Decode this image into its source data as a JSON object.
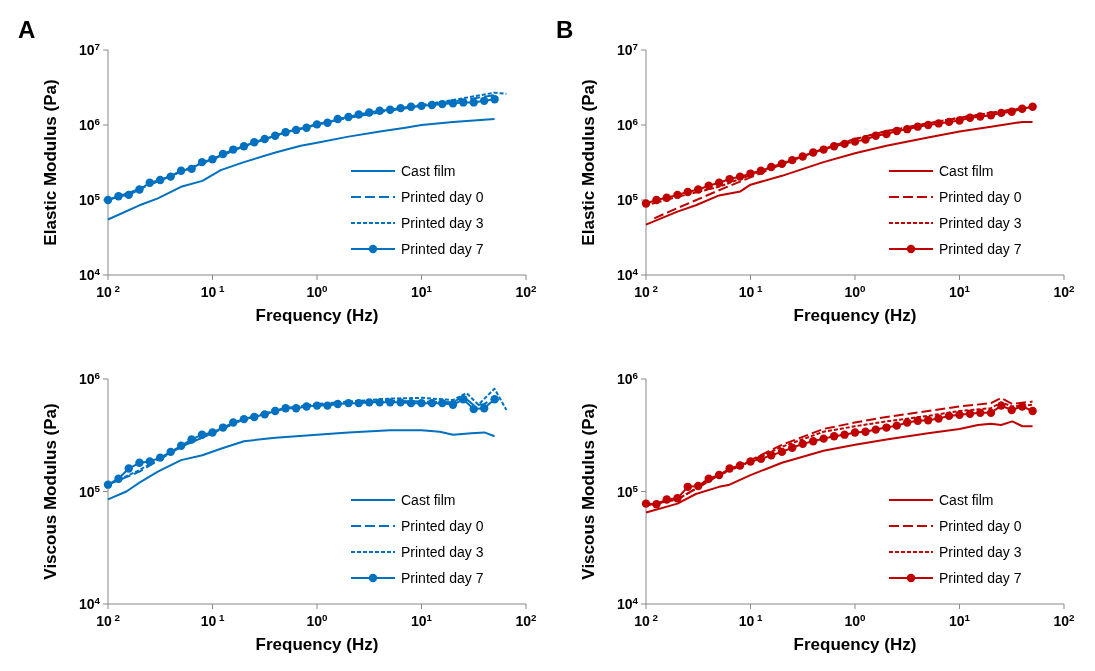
{
  "chart_data": [
    {
      "type": "line",
      "title": "A",
      "xlabel": "Frequency (Hz)",
      "ylabel": "Elastic Modulus (Pa)",
      "log": "xy",
      "legend": "bottom right",
      "grid": false,
      "xlim": [
        0.01,
        100
      ],
      "xticks": [
        {
          "value": 0.01,
          "label": "10$^{ 2}$"
        },
        {
          "value": 0.1,
          "label": "10$^{ 1}$"
        },
        {
          "value": 1,
          "label": "10$^{0}$"
        },
        {
          "value": 10,
          "label": "10$^{1}$"
        },
        {
          "value": 100,
          "label": "10$^{2}$"
        }
      ],
      "ylim": [
        10000,
        10000000
      ],
      "yticks": [
        {
          "value": 10000,
          "label": "10$^{4}$"
        },
        {
          "value": 100000,
          "label": "10$^{5}$"
        },
        {
          "value": 1000000,
          "label": "10$^{6}$"
        },
        {
          "value": 10000000,
          "label": "10$^{7}$"
        }
      ],
      "series": [
        {
          "name": "Cast film",
          "color": "#0070c0",
          "line_style": "solid",
          "marker": "none",
          "x": [
            0.01,
            0.02,
            0.03,
            0.05,
            0.08,
            0.12,
            0.2,
            0.4,
            0.7,
            1,
            2,
            4,
            7,
            10,
            20,
            50
          ],
          "values": [
            55000,
            85000,
            105000,
            150000,
            180000,
            250000,
            320000,
            430000,
            530000,
            580000,
            700000,
            820000,
            920000,
            1000000,
            1100000,
            1200000
          ]
        },
        {
          "name": "Printed day 0",
          "color": "#0070c0",
          "line_style": "longdash",
          "marker": "none",
          "x": [
            0.01,
            0.02,
            0.05,
            0.1,
            0.2,
            0.5,
            1,
            2,
            5,
            10,
            20,
            50
          ],
          "values": [
            100000,
            140000,
            240000,
            350000,
            520000,
            800000,
            1020000,
            1250000,
            1550000,
            1800000,
            2050000,
            2500000
          ]
        },
        {
          "name": "Printed day 3",
          "color": "#0070c0",
          "line_style": "dashed",
          "marker": "none",
          "x": [
            0.01,
            0.02,
            0.05,
            0.1,
            0.2,
            0.5,
            1,
            2,
            5,
            10,
            20,
            50,
            65
          ],
          "values": [
            100000,
            140000,
            240000,
            350000,
            520000,
            800000,
            1020000,
            1250000,
            1580000,
            1850000,
            2150000,
            2700000,
            2600000
          ]
        },
        {
          "name": "Printed day 7",
          "color": "#0070c0",
          "line_style": "solid",
          "marker": "circle",
          "x": [
            0.01,
            0.0126,
            0.0158,
            0.02,
            0.0251,
            0.0316,
            0.0398,
            0.0501,
            0.0631,
            0.0794,
            0.1,
            0.126,
            0.158,
            0.2,
            0.251,
            0.316,
            0.398,
            0.501,
            0.631,
            0.794,
            1,
            1.26,
            1.58,
            2,
            2.51,
            3.16,
            3.98,
            5.01,
            6.31,
            7.94,
            10,
            12.6,
            15.8,
            20,
            25.1,
            31.6,
            39.8,
            50.1
          ],
          "values": [
            100000,
            112000,
            117000,
            138000,
            170000,
            185000,
            205000,
            245000,
            260000,
            320000,
            350000,
            410000,
            470000,
            520000,
            590000,
            650000,
            720000,
            800000,
            860000,
            920000,
            1020000,
            1070000,
            1200000,
            1280000,
            1380000,
            1470000,
            1550000,
            1600000,
            1680000,
            1750000,
            1800000,
            1850000,
            1900000,
            1950000,
            2000000,
            2000000,
            2100000,
            2200000
          ]
        }
      ]
    },
    {
      "type": "line",
      "title": "B",
      "xlabel": "Frequency (Hz)",
      "ylabel": "Elastic Modulus (Pa)",
      "log": "xy",
      "legend": "bottom right",
      "grid": false,
      "xlim": [
        0.01,
        100
      ],
      "xticks": [
        {
          "value": 0.01,
          "label": "10$^{ 2}$"
        },
        {
          "value": 0.1,
          "label": "10$^{ 1}$"
        },
        {
          "value": 1,
          "label": "10$^{0}$"
        },
        {
          "value": 10,
          "label": "10$^{1}$"
        },
        {
          "value": 100,
          "label": "10$^{2}$"
        }
      ],
      "ylim": [
        10000,
        10000000
      ],
      "yticks": [
        {
          "value": 10000,
          "label": "10$^{4}$"
        },
        {
          "value": 100000,
          "label": "10$^{5}$"
        },
        {
          "value": 1000000,
          "label": "10$^{6}$"
        },
        {
          "value": 10000000,
          "label": "10$^{7}$"
        }
      ],
      "series": [
        {
          "name": "Cast film",
          "color": "#c00000",
          "line_style": "solid",
          "marker": "none",
          "x": [
            0.01,
            0.02,
            0.03,
            0.05,
            0.08,
            0.1,
            0.2,
            0.5,
            1,
            2,
            5,
            10,
            20,
            40,
            50
          ],
          "values": [
            47000,
            70000,
            85000,
            115000,
            130000,
            160000,
            210000,
            320000,
            420000,
            530000,
            680000,
            820000,
            950000,
            1100000,
            1100000
          ]
        },
        {
          "name": "Printed day 0",
          "color": "#c00000",
          "line_style": "longdash",
          "marker": "none",
          "x": [
            0.012,
            0.02,
            0.05,
            0.1,
            0.2,
            0.5,
            1,
            2,
            5,
            10,
            20,
            50
          ],
          "values": [
            57000,
            78000,
            135000,
            200000,
            300000,
            480000,
            650000,
            830000,
            1050000,
            1250000,
            1450000,
            1750000
          ]
        },
        {
          "name": "Printed day 3",
          "color": "#c00000",
          "line_style": "dashed",
          "marker": "none",
          "x": [
            0.01,
            0.02,
            0.05,
            0.1,
            0.2,
            0.5,
            1,
            2,
            5,
            10,
            20,
            50
          ],
          "values": [
            85000,
            110000,
            150000,
            215000,
            310000,
            480000,
            650000,
            830000,
            1050000,
            1250000,
            1450000,
            1750000
          ]
        },
        {
          "name": "Printed day 7",
          "color": "#c00000",
          "line_style": "solid",
          "marker": "circle",
          "x": [
            0.01,
            0.0126,
            0.0158,
            0.02,
            0.0251,
            0.0316,
            0.0398,
            0.0501,
            0.0631,
            0.0794,
            0.1,
            0.126,
            0.158,
            0.2,
            0.251,
            0.316,
            0.398,
            0.501,
            0.631,
            0.794,
            1,
            1.26,
            1.58,
            2,
            2.51,
            3.16,
            3.98,
            5.01,
            6.31,
            7.94,
            10,
            12.6,
            15.8,
            20,
            25.1,
            31.6,
            39.8,
            50.1
          ],
          "values": [
            90000,
            100000,
            107000,
            117000,
            128000,
            138000,
            155000,
            170000,
            190000,
            205000,
            225000,
            245000,
            275000,
            305000,
            340000,
            380000,
            430000,
            470000,
            520000,
            560000,
            600000,
            640000,
            720000,
            760000,
            830000,
            880000,
            950000,
            1000000,
            1050000,
            1100000,
            1150000,
            1250000,
            1300000,
            1350000,
            1450000,
            1500000,
            1650000,
            1750000
          ]
        }
      ]
    },
    {
      "type": "line",
      "xlabel": "Frequency (Hz)",
      "ylabel": "Viscous Modulus (Pa)",
      "log": "xy",
      "legend": "bottom right",
      "grid": false,
      "xlim": [
        0.01,
        100
      ],
      "xticks": [
        {
          "value": 0.01,
          "label": "10$^{ 2}$"
        },
        {
          "value": 0.1,
          "label": "10$^{ 1}$"
        },
        {
          "value": 1,
          "label": "10$^{0}$"
        },
        {
          "value": 10,
          "label": "10$^{1}$"
        },
        {
          "value": 100,
          "label": "10$^{2}$"
        }
      ],
      "ylim": [
        10000,
        1000000
      ],
      "yticks": [
        {
          "value": 10000,
          "label": "10$^{4}$"
        },
        {
          "value": 100000,
          "label": "10$^{5}$"
        },
        {
          "value": 1000000,
          "label": "10$^{6}$"
        }
      ],
      "series": [
        {
          "name": "Cast film",
          "color": "#0070c0",
          "line_style": "solid",
          "marker": "none",
          "x": [
            0.01,
            0.015,
            0.02,
            0.03,
            0.05,
            0.08,
            0.12,
            0.2,
            0.4,
            1,
            2,
            5,
            10,
            15,
            20,
            30,
            40,
            50
          ],
          "values": [
            85000,
            100000,
            120000,
            150000,
            190000,
            210000,
            240000,
            280000,
            300000,
            320000,
            335000,
            350000,
            350000,
            340000,
            320000,
            330000,
            335000,
            310000
          ]
        },
        {
          "name": "Printed day 0",
          "color": "#0070c0",
          "line_style": "longdash",
          "marker": "none",
          "x": [
            0.01,
            0.02,
            0.05,
            0.1,
            0.2,
            0.5,
            1,
            2,
            5,
            10,
            20,
            25,
            32,
            40,
            50,
            55
          ],
          "values": [
            115000,
            150000,
            250000,
            330000,
            440000,
            550000,
            590000,
            620000,
            640000,
            630000,
            620000,
            700000,
            580000,
            600000,
            680000,
            650000
          ]
        },
        {
          "name": "Printed day 3",
          "color": "#0070c0",
          "line_style": "dashed",
          "marker": "none",
          "x": [
            0.01,
            0.02,
            0.05,
            0.1,
            0.2,
            0.5,
            1,
            2,
            5,
            10,
            20,
            27,
            35,
            50,
            65
          ],
          "values": [
            115000,
            155000,
            250000,
            330000,
            440000,
            550000,
            600000,
            630000,
            670000,
            680000,
            650000,
            750000,
            590000,
            820000,
            530000
          ]
        },
        {
          "name": "Printed day 7",
          "color": "#0070c0",
          "line_style": "solid",
          "marker": "circle",
          "x": [
            0.01,
            0.0126,
            0.0158,
            0.02,
            0.0251,
            0.0316,
            0.0398,
            0.0501,
            0.0631,
            0.0794,
            0.1,
            0.126,
            0.158,
            0.2,
            0.251,
            0.316,
            0.398,
            0.501,
            0.631,
            0.794,
            1,
            1.26,
            1.58,
            2,
            2.51,
            3.16,
            3.98,
            5.01,
            6.31,
            7.94,
            10,
            12.6,
            15.8,
            20,
            25.1,
            31.6,
            39.8,
            50.1
          ],
          "values": [
            115000,
            130000,
            160000,
            180000,
            185000,
            200000,
            225000,
            255000,
            290000,
            320000,
            335000,
            370000,
            410000,
            440000,
            460000,
            485000,
            520000,
            550000,
            550000,
            570000,
            580000,
            580000,
            600000,
            610000,
            610000,
            620000,
            620000,
            620000,
            620000,
            610000,
            610000,
            610000,
            610000,
            590000,
            660000,
            540000,
            550000,
            660000
          ]
        }
      ]
    },
    {
      "type": "line",
      "xlabel": "Frequency (Hz)",
      "ylabel": "Viscous Modulus (Pa)",
      "log": "xy",
      "legend": "bottom right",
      "grid": false,
      "xlim": [
        0.01,
        100
      ],
      "xticks": [
        {
          "value": 0.01,
          "label": "10$^{ 2}$"
        },
        {
          "value": 0.1,
          "label": "10$^{ 1}$"
        },
        {
          "value": 1,
          "label": "10$^{0}$"
        },
        {
          "value": 10,
          "label": "10$^{1}$"
        },
        {
          "value": 100,
          "label": "10$^{2}$"
        }
      ],
      "ylim": [
        10000,
        1000000
      ],
      "yticks": [
        {
          "value": 10000,
          "label": "10$^{4}$"
        },
        {
          "value": 100000,
          "label": "10$^{5}$"
        },
        {
          "value": 1000000,
          "label": "10$^{6}$"
        }
      ],
      "series": [
        {
          "name": "Cast film",
          "color": "#c00000",
          "line_style": "solid",
          "marker": "none",
          "x": [
            0.01,
            0.02,
            0.03,
            0.05,
            0.063,
            0.1,
            0.2,
            0.5,
            1,
            2,
            5,
            10,
            15,
            20,
            25,
            32,
            40,
            50
          ],
          "values": [
            65000,
            78000,
            95000,
            110000,
            115000,
            140000,
            180000,
            230000,
            260000,
            290000,
            330000,
            360000,
            390000,
            400000,
            390000,
            420000,
            380000,
            380000
          ]
        },
        {
          "name": "Printed day 0",
          "color": "#c00000",
          "line_style": "longdash",
          "marker": "none",
          "x": [
            0.01,
            0.02,
            0.05,
            0.1,
            0.2,
            0.5,
            1,
            2,
            5,
            10,
            20,
            25,
            32,
            50
          ],
          "values": [
            75000,
            85000,
            140000,
            190000,
            260000,
            360000,
            410000,
            460000,
            520000,
            570000,
            610000,
            680000,
            600000,
            630000
          ]
        },
        {
          "name": "Printed day 3",
          "color": "#c00000",
          "line_style": "dashed",
          "marker": "none",
          "x": [
            0.01,
            0.02,
            0.05,
            0.1,
            0.2,
            0.5,
            1,
            2,
            5,
            10,
            20,
            25,
            32,
            50
          ],
          "values": [
            75000,
            85000,
            140000,
            185000,
            250000,
            340000,
            380000,
            420000,
            470000,
            520000,
            550000,
            620000,
            570000,
            590000
          ]
        },
        {
          "name": "Printed day 7",
          "color": "#c00000",
          "line_style": "solid",
          "marker": "circle",
          "x": [
            0.01,
            0.0126,
            0.0158,
            0.02,
            0.0251,
            0.0316,
            0.0398,
            0.0501,
            0.0631,
            0.0794,
            0.1,
            0.126,
            0.158,
            0.2,
            0.251,
            0.316,
            0.398,
            0.501,
            0.631,
            0.794,
            1,
            1.26,
            1.58,
            2,
            2.51,
            3.16,
            3.98,
            5.01,
            6.31,
            7.94,
            10,
            12.6,
            15.8,
            20,
            25.1,
            31.6,
            39.8,
            50.1
          ],
          "values": [
            78000,
            77000,
            85000,
            87000,
            110000,
            112000,
            130000,
            140000,
            160000,
            170000,
            185000,
            195000,
            210000,
            225000,
            245000,
            265000,
            280000,
            295000,
            310000,
            320000,
            335000,
            340000,
            355000,
            370000,
            385000,
            410000,
            425000,
            430000,
            445000,
            470000,
            480000,
            490000,
            500000,
            500000,
            580000,
            530000,
            570000,
            520000
          ]
        }
      ]
    }
  ]
}
